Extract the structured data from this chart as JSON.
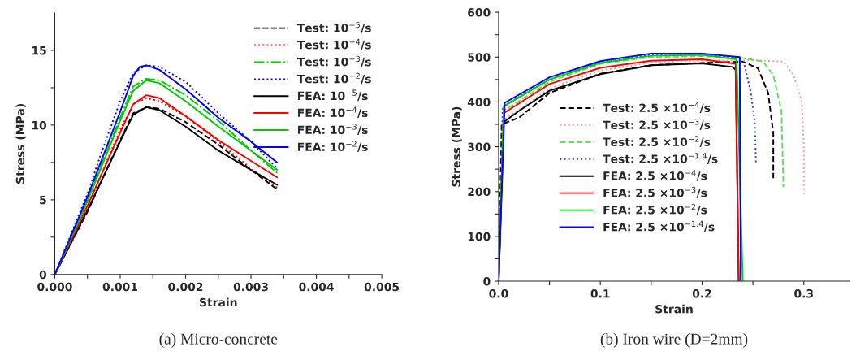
{
  "chart_data": [
    {
      "type": "line",
      "xlabel": "Strain",
      "ylabel": "Stress (MPa)",
      "xlim": [
        0,
        0.005
      ],
      "ylim": [
        0,
        17.5
      ],
      "xticks": [
        {
          "value": 0,
          "label": "0.000"
        },
        {
          "value": 0.0005,
          "label": null
        },
        {
          "value": 0.001,
          "label": "0.001"
        },
        {
          "value": 0.0015,
          "label": null
        },
        {
          "value": 0.002,
          "label": "0.002"
        },
        {
          "value": 0.0025,
          "label": null
        },
        {
          "value": 0.003,
          "label": "0.003"
        },
        {
          "value": 0.0035,
          "label": null
        },
        {
          "value": 0.004,
          "label": "0.004"
        },
        {
          "value": 0.0045,
          "label": null
        },
        {
          "value": 0.005,
          "label": "0.005"
        }
      ],
      "yticks": [
        0,
        {
          "value": 2.5,
          "label": null
        },
        5,
        {
          "value": 7.5,
          "label": null
        },
        10,
        {
          "value": 12.5,
          "label": null
        },
        15
      ],
      "grid": false,
      "legend": "top right",
      "annotations": [
        "(a) Micro-concrete"
      ],
      "series": [
        {
          "name": "Test: 10$^{−5}$/s",
          "color": "#000000",
          "line_style": "dashed",
          "x": [
            0,
            0.0005,
            0.001,
            0.0012,
            0.0014,
            0.0016,
            0.002,
            0.0025,
            0.003,
            0.0034
          ],
          "values": [
            0,
            4.2,
            9.0,
            10.8,
            11.2,
            11.1,
            10.2,
            8.7,
            7.0,
            5.7
          ]
        },
        {
          "name": "Test: 10$^{−4}$/s",
          "color": "#ff0000",
          "line_style": "dotted",
          "x": [
            0,
            0.0005,
            0.001,
            0.0012,
            0.0014,
            0.0016,
            0.002,
            0.0025,
            0.003,
            0.0034
          ],
          "values": [
            0,
            4.5,
            9.7,
            11.4,
            11.8,
            11.6,
            10.6,
            8.9,
            7.1,
            5.8
          ]
        },
        {
          "name": "Test: 10$^{−3}$/s",
          "color": "#00cc00",
          "line_style": "dashdot",
          "x": [
            0,
            0.0005,
            0.001,
            0.0012,
            0.0014,
            0.0016,
            0.002,
            0.0025,
            0.003,
            0.0034
          ],
          "values": [
            0,
            5.0,
            10.5,
            12.6,
            13.1,
            13.0,
            12.0,
            10.3,
            8.3,
            6.8
          ]
        },
        {
          "name": "Test: 10$^{−2}$/s",
          "color": "#0000ff",
          "line_style": "dotted",
          "x": [
            0,
            0.0005,
            0.0007,
            0.001,
            0.0012,
            0.0014,
            0.0016,
            0.002,
            0.0025,
            0.003,
            0.0034
          ],
          "values": [
            0,
            5.4,
            8.0,
            11.6,
            13.5,
            14.0,
            13.9,
            12.9,
            10.8,
            8.9,
            7.1
          ]
        },
        {
          "name": "FEA: 10$^{−5}$/s",
          "color": "#000000",
          "line_style": "solid",
          "x": [
            0,
            0.0005,
            0.001,
            0.0012,
            0.0014,
            0.0016,
            0.002,
            0.0025,
            0.003,
            0.0034
          ],
          "values": [
            0,
            4.3,
            8.9,
            10.7,
            11.2,
            11.0,
            9.9,
            8.3,
            7.0,
            6.0
          ]
        },
        {
          "name": "FEA: 10$^{−4}$/s",
          "color": "#ff0000",
          "line_style": "solid",
          "x": [
            0,
            0.0005,
            0.001,
            0.0012,
            0.0014,
            0.0016,
            0.002,
            0.0025,
            0.003,
            0.0034
          ],
          "values": [
            0,
            4.6,
            9.5,
            11.4,
            12.0,
            11.8,
            10.6,
            9.0,
            7.6,
            6.5
          ]
        },
        {
          "name": "FEA: 10$^{−3}$/s",
          "color": "#00cc00",
          "line_style": "solid",
          "x": [
            0,
            0.0005,
            0.001,
            0.0012,
            0.0014,
            0.0016,
            0.002,
            0.0025,
            0.003,
            0.0034
          ],
          "values": [
            0,
            4.9,
            10.3,
            12.3,
            13.0,
            12.8,
            11.6,
            9.9,
            8.3,
            7.0
          ]
        },
        {
          "name": "FEA: 10$^{−2}$/s",
          "color": "#0000ff",
          "line_style": "solid",
          "x": [
            0,
            0.0005,
            0.001,
            0.0012,
            0.0013,
            0.0014,
            0.0016,
            0.002,
            0.0025,
            0.003,
            0.0034
          ],
          "values": [
            0,
            5.2,
            10.9,
            13.3,
            13.9,
            14.0,
            13.7,
            12.4,
            10.5,
            8.9,
            7.5
          ]
        }
      ]
    },
    {
      "type": "line",
      "xlabel": "Strain",
      "ylabel": "Stress (MPa)",
      "xlim": [
        0,
        0.345
      ],
      "ylim": [
        0,
        600
      ],
      "xticks": [
        {
          "value": 0,
          "label": "0.0"
        },
        {
          "value": 0.05,
          "label": null
        },
        0.1,
        {
          "value": 0.15,
          "label": null
        },
        0.2,
        {
          "value": 0.25,
          "label": null
        },
        0.3
      ],
      "yticks": [
        0,
        {
          "value": 50,
          "label": null
        },
        100,
        {
          "value": 150,
          "label": null
        },
        200,
        {
          "value": 250,
          "label": null
        },
        300,
        {
          "value": 350,
          "label": null
        },
        400,
        {
          "value": 450,
          "label": null
        },
        500,
        {
          "value": 550,
          "label": null
        },
        600
      ],
      "grid": false,
      "legend": "center",
      "annotations": [
        "(b) Iron wire (D=2mm)"
      ],
      "series": [
        {
          "name": "Test: 2.5 ×10$^{−4}$/s",
          "color": "#000000",
          "line_style": "dashed",
          "x": [
            0,
            0.003,
            0.02,
            0.05,
            0.1,
            0.15,
            0.2,
            0.24,
            0.255,
            0.265,
            0.27,
            0.27
          ],
          "values": [
            0,
            350,
            365,
            420,
            463,
            482,
            487,
            490,
            475,
            420,
            330,
            230
          ]
        },
        {
          "name": "Test: 2.5 ×10$^{−3}$/s",
          "color": "#ff9999",
          "line_style": "dotted",
          "x": [
            0,
            0.005,
            0.05,
            0.1,
            0.15,
            0.2,
            0.25,
            0.28,
            0.29,
            0.298,
            0.3,
            0.3
          ],
          "values": [
            0,
            360,
            430,
            470,
            488,
            492,
            493,
            490,
            460,
            400,
            300,
            190
          ]
        },
        {
          "name": "Test: 2.5 ×10$^{−2}$/s",
          "color": "#66dd66",
          "line_style": "dashed",
          "x": [
            0,
            0.005,
            0.05,
            0.1,
            0.15,
            0.2,
            0.24,
            0.26,
            0.27,
            0.278,
            0.28
          ],
          "values": [
            0,
            380,
            445,
            485,
            500,
            502,
            498,
            490,
            460,
            380,
            210
          ]
        },
        {
          "name": "Test: 2.5 ×10$^{−1.4}$/s",
          "color": "#3333cc",
          "line_style": "dotted",
          "x": [
            0,
            0.004,
            0.05,
            0.1,
            0.15,
            0.2,
            0.237,
            0.242,
            0.248,
            0.252,
            0.253
          ],
          "values": [
            0,
            390,
            450,
            488,
            505,
            506,
            498,
            480,
            420,
            350,
            260
          ]
        },
        {
          "name": "FEA: 2.5 ×10$^{−4}$/s",
          "color": "#000000",
          "line_style": "solid",
          "x": [
            0,
            0.005,
            0.02,
            0.05,
            0.1,
            0.15,
            0.2,
            0.23,
            0.233,
            0.236
          ],
          "values": [
            0,
            355,
            380,
            425,
            462,
            482,
            486,
            478,
            472,
            0
          ]
        },
        {
          "name": "FEA: 2.5 ×10$^{−3}$/s",
          "color": "#ff0000",
          "line_style": "solid",
          "x": [
            0,
            0.005,
            0.05,
            0.1,
            0.15,
            0.2,
            0.233,
            0.236
          ],
          "values": [
            0,
            375,
            440,
            476,
            492,
            495,
            485,
            0
          ]
        },
        {
          "name": "FEA: 2.5 ×10$^{−2}$/s",
          "color": "#00cc00",
          "line_style": "solid",
          "x": [
            0,
            0.005,
            0.05,
            0.1,
            0.15,
            0.2,
            0.234,
            0.24
          ],
          "values": [
            0,
            390,
            450,
            487,
            503,
            505,
            495,
            0
          ]
        },
        {
          "name": "FEA: 2.5 ×10$^{−1.4}$/s",
          "color": "#0000ff",
          "line_style": "solid",
          "x": [
            0,
            0.006,
            0.05,
            0.1,
            0.15,
            0.2,
            0.237,
            0.238
          ],
          "values": [
            0,
            398,
            455,
            491,
            508,
            508,
            500,
            0
          ]
        }
      ]
    }
  ]
}
